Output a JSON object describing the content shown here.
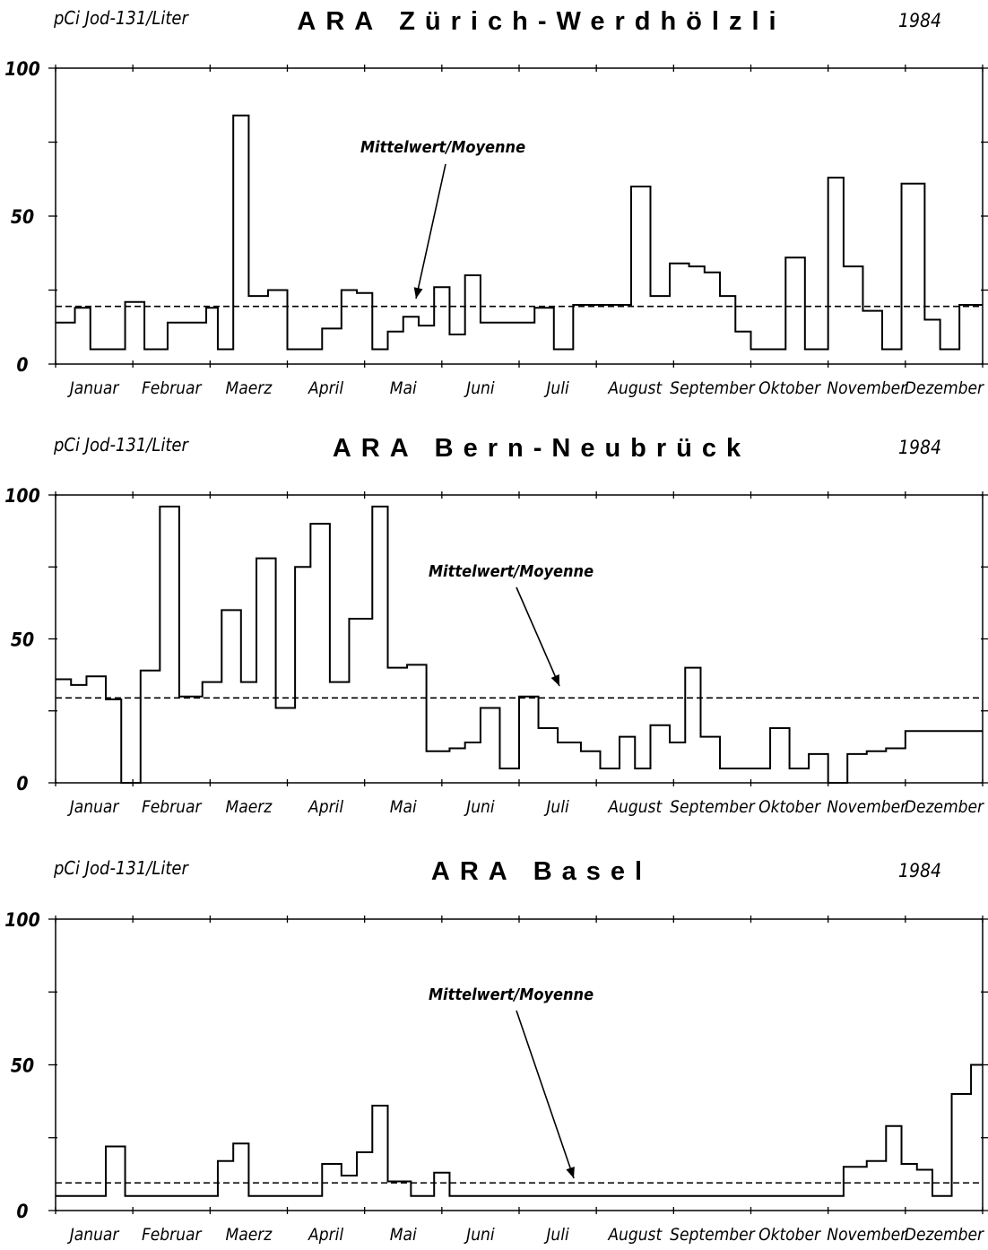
{
  "colors": {
    "ink": "#000000",
    "paper": "#ffffff"
  },
  "chart_data": [
    {
      "type": "line",
      "step": true,
      "title": "ARA Zürich-Werdhölzli",
      "unit_label": "pCi Jod-131/Liter",
      "year": "1984",
      "mean_label": "Mittelwert/Moyenne",
      "mean": 19.5,
      "ylim": [
        0,
        100
      ],
      "y_ticks": [
        "0",
        "50",
        "100"
      ],
      "months": [
        "Januar",
        "Februar",
        "Maerz",
        "April",
        "Mai",
        "Juni",
        "Juli",
        "August",
        "September",
        "Oktober",
        "November",
        "Dezember"
      ],
      "x": [
        0,
        0.25,
        0.45,
        0.9,
        1.15,
        1.45,
        1.95,
        2.1,
        2.3,
        2.5,
        2.75,
        3.0,
        3.45,
        3.7,
        3.9,
        4.1,
        4.3,
        4.5,
        4.7,
        4.9,
        5.1,
        5.3,
        5.5,
        6.2,
        6.45,
        6.7,
        7.45,
        7.7,
        7.95,
        8.2,
        8.4,
        8.6,
        8.8,
        9.0,
        9.45,
        9.7,
        10.0,
        10.2,
        10.45,
        10.7,
        10.95,
        11.25,
        11.45,
        11.7
      ],
      "y": [
        14,
        19,
        5,
        21,
        5,
        14,
        19,
        5,
        84,
        23,
        25,
        5,
        12,
        25,
        24,
        5,
        11,
        16,
        13,
        26,
        10,
        30,
        14,
        19,
        5,
        20,
        60,
        23,
        34,
        33,
        31,
        23,
        11,
        5,
        36,
        5,
        63,
        33,
        18,
        5,
        61,
        15,
        5,
        20
      ]
    },
    {
      "type": "line",
      "step": true,
      "title": "ARA Bern-Neubrück",
      "unit_label": "pCi Jod-131/Liter",
      "year": "1984",
      "mean_label": "Mittelwert/Moyenne",
      "mean": 29.5,
      "ylim": [
        0,
        100
      ],
      "y_ticks": [
        "0",
        "50",
        "100"
      ],
      "months": [
        "Januar",
        "Februar",
        "Maerz",
        "April",
        "Mai",
        "Juni",
        "Juli",
        "August",
        "September",
        "Oktober",
        "November",
        "Dezember"
      ],
      "x": [
        0,
        0.2,
        0.4,
        0.65,
        0.85,
        1.1,
        1.35,
        1.6,
        1.9,
        2.15,
        2.4,
        2.6,
        2.85,
        3.1,
        3.3,
        3.55,
        3.8,
        4.1,
        4.3,
        4.55,
        4.8,
        5.1,
        5.3,
        5.5,
        5.75,
        6.0,
        6.25,
        6.5,
        6.8,
        7.05,
        7.3,
        7.5,
        7.7,
        7.95,
        8.15,
        8.35,
        8.6,
        9.0,
        9.25,
        9.5,
        9.75,
        10.0,
        10.25,
        10.5,
        10.75,
        11.0
      ],
      "y": [
        36,
        34,
        37,
        29,
        0,
        39,
        96,
        30,
        35,
        60,
        35,
        78,
        26,
        75,
        90,
        35,
        57,
        96,
        40,
        41,
        11,
        12,
        14,
        26,
        5,
        30,
        19,
        14,
        11,
        5,
        16,
        5,
        20,
        14,
        40,
        16,
        5,
        5,
        19,
        5,
        10,
        0,
        10,
        11,
        12,
        18
      ]
    },
    {
      "type": "line",
      "step": true,
      "title": "ARA Basel",
      "unit_label": "pCi Jod-131/Liter",
      "year": "1984",
      "mean_label": "Mittelwert/Moyenne",
      "mean": 9.5,
      "ylim": [
        0,
        100
      ],
      "y_ticks": [
        "0",
        "50",
        "100"
      ],
      "months": [
        "Januar",
        "Februar",
        "Maerz",
        "April",
        "Mai",
        "Juni",
        "Juli",
        "August",
        "September",
        "Oktober",
        "November",
        "Dezember"
      ],
      "x": [
        0,
        0.65,
        0.9,
        2.1,
        2.3,
        2.5,
        3.0,
        3.45,
        3.7,
        3.9,
        4.1,
        4.3,
        4.6,
        4.9,
        5.1,
        5.3,
        10.0,
        10.2,
        10.5,
        10.75,
        10.95,
        11.15,
        11.35,
        11.6,
        11.85
      ],
      "y": [
        5,
        22,
        5,
        17,
        23,
        5,
        5,
        16,
        12,
        20,
        36,
        10,
        5,
        13,
        5,
        5,
        5,
        15,
        17,
        29,
        16,
        14,
        5,
        40,
        50
      ]
    }
  ]
}
